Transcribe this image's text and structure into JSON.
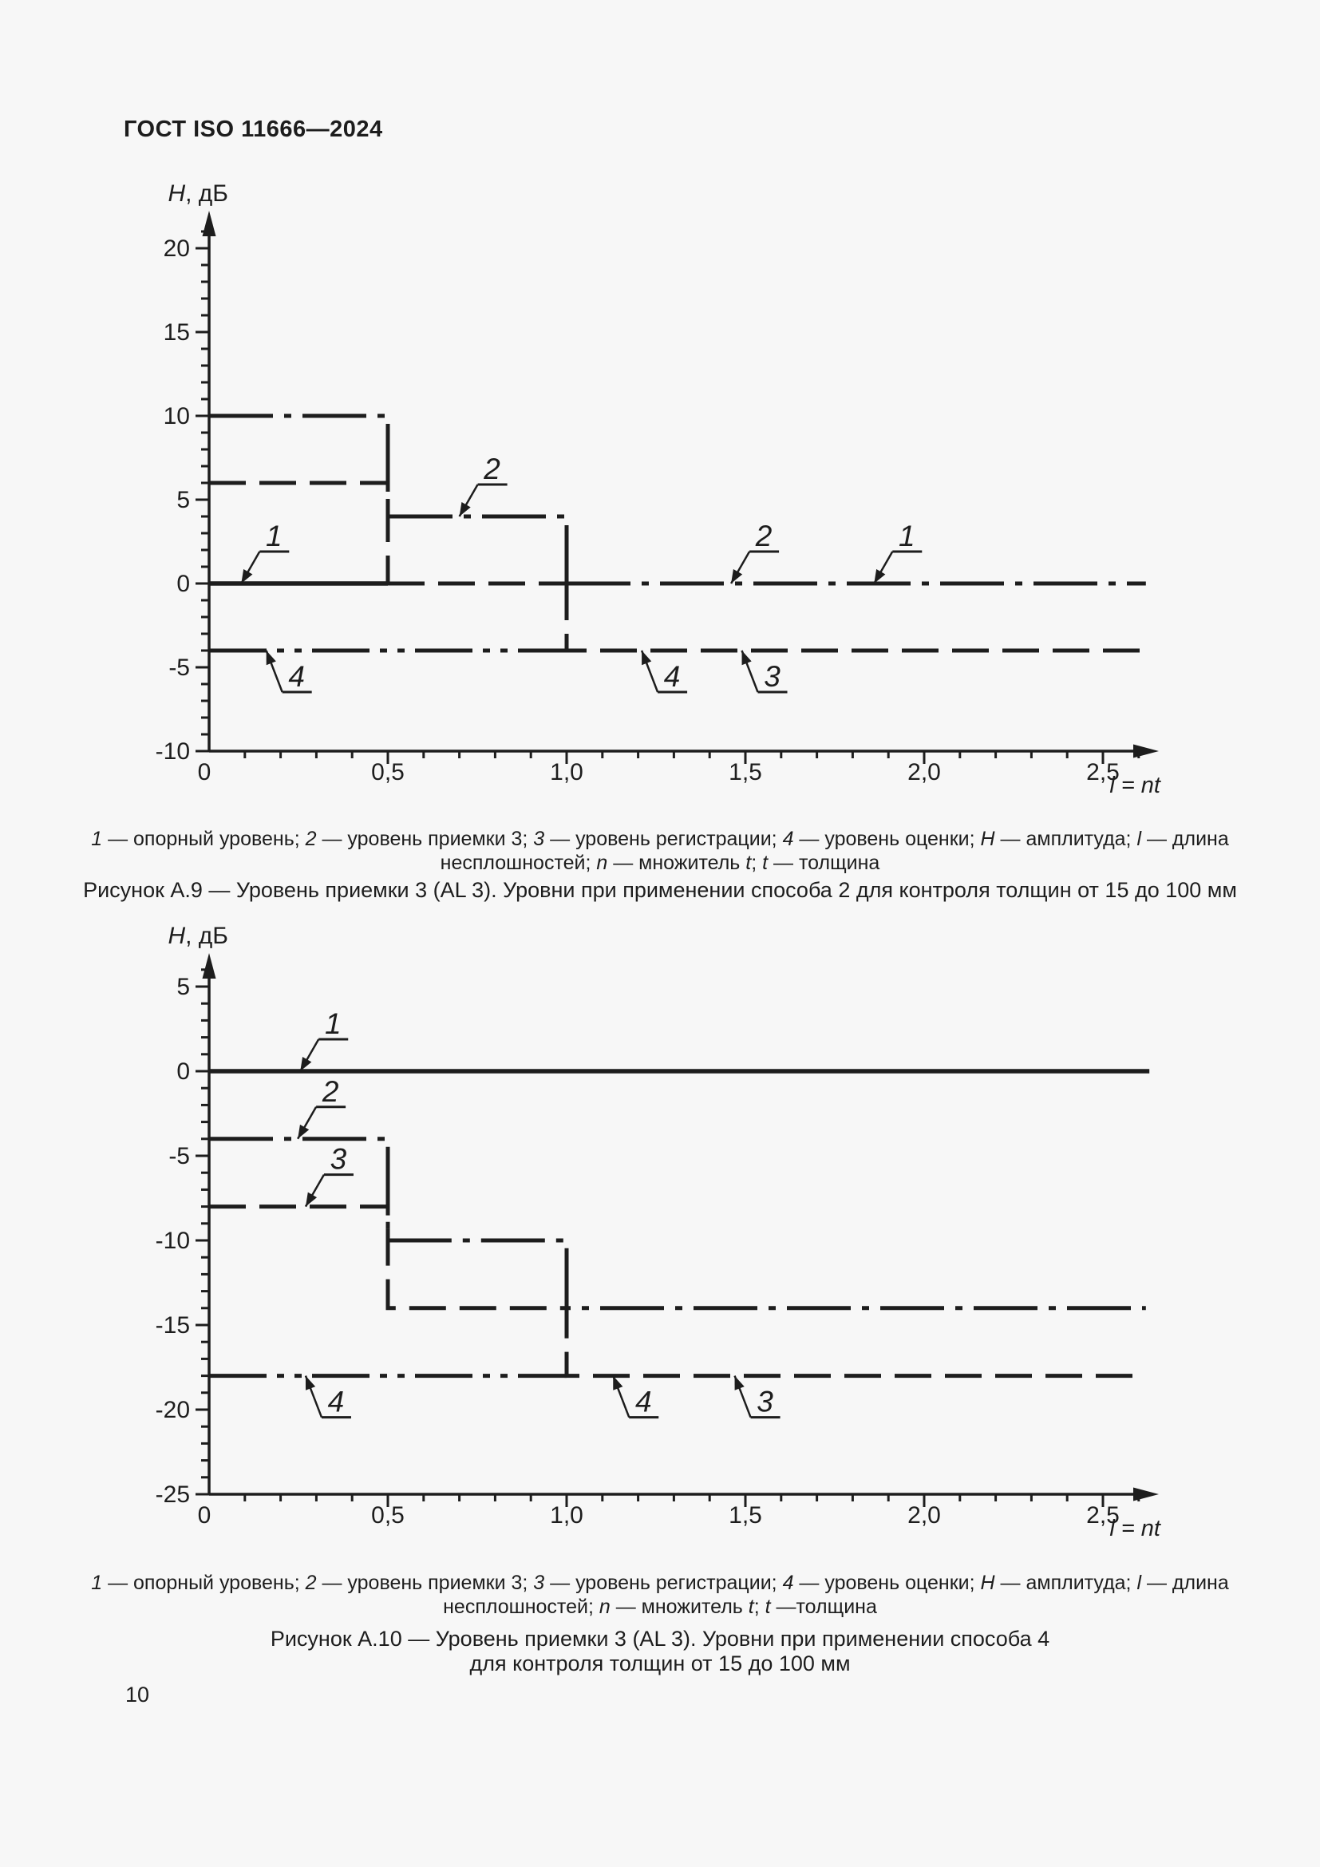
{
  "page": {
    "header": "ГОСТ ISO 11666—2024",
    "page_number": "10",
    "background": "#f7f7f7",
    "ink": "#1d1d1d"
  },
  "legend1": {
    "line1_runs": [
      {
        "t": "1",
        "i": true
      },
      {
        "t": " — опорный уровень; "
      },
      {
        "t": "2",
        "i": true
      },
      {
        "t": " — уровень приемки 3; "
      },
      {
        "t": "3",
        "i": true
      },
      {
        "t": " — уровень регистрации; "
      },
      {
        "t": "4",
        "i": true
      },
      {
        "t": " — уровень оценки; "
      },
      {
        "t": "H",
        "i": true
      },
      {
        "t": " — амплитуда; "
      },
      {
        "t": "l",
        "i": true
      },
      {
        "t": " — длина"
      }
    ],
    "line2_runs": [
      {
        "t": "несплошностей; "
      },
      {
        "t": "n",
        "i": true
      },
      {
        "t": " — множитель "
      },
      {
        "t": "t",
        "i": true
      },
      {
        "t": "; "
      },
      {
        "t": "t",
        "i": true
      },
      {
        "t": " — толщина"
      }
    ]
  },
  "caption1": "Рисунок А.9 — Уровень приемки 3 (AL 3). Уровни при применении способа 2 для контроля толщин от 15 до 100 мм",
  "legend2": {
    "line1_runs": [
      {
        "t": "1",
        "i": true
      },
      {
        "t": " — опорный уровень; "
      },
      {
        "t": "2",
        "i": true
      },
      {
        "t": " — уровень приемки 3; "
      },
      {
        "t": "3",
        "i": true
      },
      {
        "t": " — уровень регистрации; "
      },
      {
        "t": "4",
        "i": true
      },
      {
        "t": " — уровень оценки; "
      },
      {
        "t": "H",
        "i": true
      },
      {
        "t": " — амплитуда; "
      },
      {
        "t": "l",
        "i": true
      },
      {
        "t": " — длина"
      }
    ],
    "line2_runs": [
      {
        "t": "несплошностей; "
      },
      {
        "t": "n",
        "i": true
      },
      {
        "t": " — множитель "
      },
      {
        "t": "t",
        "i": true
      },
      {
        "t": "; "
      },
      {
        "t": "t",
        "i": true
      },
      {
        "t": " —толщина"
      }
    ]
  },
  "caption2_line1": "Рисунок А.10 — Уровень приемки 3 (AL 3). Уровни при применении способа 4",
  "caption2_line2": "для контроля толщин от 15 до 100 мм",
  "chart_data": [
    {
      "id": "a9",
      "type": "line",
      "title": "Рисунок А.9 — Уровень приемки 3 (AL 3). Уровни при применении способа 2 для контроля толщин от 15 до 100 мм",
      "ylabel_runs": [
        {
          "t": "H",
          "i": true
        },
        {
          "t": ", дБ"
        }
      ],
      "xlabel": "l = nt",
      "xlim": [
        0,
        2.6
      ],
      "ylim": [
        -10,
        21
      ],
      "x_ticks": [
        {
          "v": 0,
          "label": "0"
        },
        {
          "v": 0.5,
          "label": "0,5"
        },
        {
          "v": 1,
          "label": "1,0"
        },
        {
          "v": 1.5,
          "label": "1,5"
        },
        {
          "v": 2,
          "label": "2,0"
        },
        {
          "v": 2.5,
          "label": "2,5"
        }
      ],
      "y_ticks": [
        {
          "v": 20,
          "label": "20"
        },
        {
          "v": 15,
          "label": "15"
        },
        {
          "v": 10,
          "label": "10"
        },
        {
          "v": 5,
          "label": "5"
        },
        {
          "v": 0,
          "label": "0"
        },
        {
          "v": -5,
          "label": "-5"
        },
        {
          "v": -10,
          "label": "-10"
        }
      ],
      "series_levels": [
        {
          "name": "1 — опорный уровень",
          "steps": [
            {
              "from": 0,
              "to": 2.6,
              "y": 0
            }
          ]
        },
        {
          "name": "2 — уровень приемки 3",
          "steps": [
            {
              "from": 0,
              "to": 0.5,
              "y": 10
            },
            {
              "from": 0.5,
              "to": 1,
              "y": 4
            },
            {
              "from": 1,
              "to": 2.6,
              "y": 0
            }
          ]
        },
        {
          "name": "3 — уровень регистрации",
          "steps": [
            {
              "from": 0,
              "to": 0.5,
              "y": 6
            },
            {
              "from": 0.5,
              "to": 1,
              "y": 0
            },
            {
              "from": 1,
              "to": 2.6,
              "y": -4
            }
          ]
        },
        {
          "name": "4 — уровень оценки",
          "steps": [
            {
              "from": 0,
              "to": 2.6,
              "y": -4
            }
          ]
        }
      ],
      "segments": [
        {
          "style": "solid",
          "pts": [
            [
              0,
              0
            ],
            [
              0.5,
              0
            ]
          ]
        },
        {
          "style": "dash",
          "pts": [
            [
              0.5,
              0
            ],
            [
              1,
              0
            ]
          ]
        },
        {
          "style": "dashdot",
          "pts": [
            [
              1,
              0
            ],
            [
              2.62,
              0
            ]
          ]
        },
        {
          "style": "dashdot",
          "pts": [
            [
              0,
              10
            ],
            [
              0.5,
              10
            ],
            [
              0.5,
              4
            ],
            [
              1,
              4
            ],
            [
              1,
              0
            ]
          ]
        },
        {
          "style": "dash",
          "pts": [
            [
              0,
              6
            ],
            [
              0.5,
              6
            ],
            [
              0.5,
              0
            ]
          ]
        },
        {
          "style": "dash",
          "pts": [
            [
              1,
              0
            ],
            [
              1,
              -4
            ],
            [
              2.62,
              -4
            ]
          ]
        },
        {
          "style": "dashdotdot",
          "pts": [
            [
              0,
              -4
            ],
            [
              1,
              -4
            ]
          ]
        }
      ],
      "annotations": [
        {
          "label": "1",
          "x": 0.09,
          "y": 0,
          "dir": "down"
        },
        {
          "label": "2",
          "x": 0.7,
          "y": 4,
          "dir": "down"
        },
        {
          "label": "2",
          "x": 1.46,
          "y": 0,
          "dir": "down"
        },
        {
          "label": "1",
          "x": 1.86,
          "y": 0,
          "dir": "down"
        },
        {
          "label": "4",
          "x": 0.16,
          "y": -4,
          "dir": "up"
        },
        {
          "label": "4",
          "x": 1.21,
          "y": -4,
          "dir": "up"
        },
        {
          "label": "3",
          "x": 1.49,
          "y": -4,
          "dir": "up"
        }
      ]
    },
    {
      "id": "a10",
      "type": "line",
      "title": "Рисунок А.10 — Уровень приемки 3 (AL 3). Уровни при применении способа 4 для контроля толщин от 15 до 100 мм",
      "ylabel_runs": [
        {
          "t": "H",
          "i": true
        },
        {
          "t": ", дБ"
        }
      ],
      "xlabel": "l = nt",
      "xlim": [
        0,
        2.6
      ],
      "ylim": [
        -25,
        6
      ],
      "x_ticks": [
        {
          "v": 0,
          "label": "0"
        },
        {
          "v": 0.5,
          "label": "0,5"
        },
        {
          "v": 1,
          "label": "1,0"
        },
        {
          "v": 1.5,
          "label": "1,5"
        },
        {
          "v": 2,
          "label": "2,0"
        },
        {
          "v": 2.5,
          "label": "2,5"
        }
      ],
      "y_ticks": [
        {
          "v": 5,
          "label": "5"
        },
        {
          "v": 0,
          "label": "0"
        },
        {
          "v": -5,
          "label": "-5"
        },
        {
          "v": -10,
          "label": "-10"
        },
        {
          "v": -15,
          "label": "-15"
        },
        {
          "v": -20,
          "label": "-20"
        },
        {
          "v": -25,
          "label": "-25"
        }
      ],
      "series_levels": [
        {
          "name": "1 — опорный уровень",
          "steps": [
            {
              "from": 0,
              "to": 2.6,
              "y": 0
            }
          ]
        },
        {
          "name": "2 — уровень приемки 3",
          "steps": [
            {
              "from": 0,
              "to": 0.5,
              "y": -4
            },
            {
              "from": 0.5,
              "to": 1,
              "y": -10
            },
            {
              "from": 1,
              "to": 2.6,
              "y": -14
            }
          ]
        },
        {
          "name": "3 — уровень регистрации",
          "steps": [
            {
              "from": 0,
              "to": 0.5,
              "y": -8
            },
            {
              "from": 0.5,
              "to": 1,
              "y": -14
            },
            {
              "from": 1,
              "to": 2.6,
              "y": -18
            }
          ]
        },
        {
          "name": "4 — уровень оценки",
          "steps": [
            {
              "from": 0,
              "to": 2.6,
              "y": -18
            }
          ]
        }
      ],
      "segments": [
        {
          "style": "solid",
          "pts": [
            [
              0,
              0
            ],
            [
              2.63,
              0
            ]
          ]
        },
        {
          "style": "dashdot",
          "pts": [
            [
              0,
              -4
            ],
            [
              0.5,
              -4
            ],
            [
              0.5,
              -10
            ],
            [
              1,
              -10
            ],
            [
              1,
              -14
            ],
            [
              2.62,
              -14
            ]
          ]
        },
        {
          "style": "dash",
          "pts": [
            [
              0,
              -8
            ],
            [
              0.5,
              -8
            ],
            [
              0.5,
              -14
            ],
            [
              1,
              -14
            ],
            [
              1,
              -18
            ],
            [
              2.62,
              -18
            ]
          ]
        },
        {
          "style": "dashdotdot",
          "pts": [
            [
              0,
              -18
            ],
            [
              1,
              -18
            ]
          ]
        }
      ],
      "annotations": [
        {
          "label": "1",
          "x": 0.255,
          "y": 0,
          "dir": "down"
        },
        {
          "label": "2",
          "x": 0.248,
          "y": -4,
          "dir": "down"
        },
        {
          "label": "3",
          "x": 0.27,
          "y": -8,
          "dir": "down"
        },
        {
          "label": "4",
          "x": 0.27,
          "y": -18,
          "dir": "up"
        },
        {
          "label": "4",
          "x": 1.13,
          "y": -18,
          "dir": "up"
        },
        {
          "label": "3",
          "x": 1.47,
          "y": -18,
          "dir": "up"
        }
      ]
    }
  ]
}
